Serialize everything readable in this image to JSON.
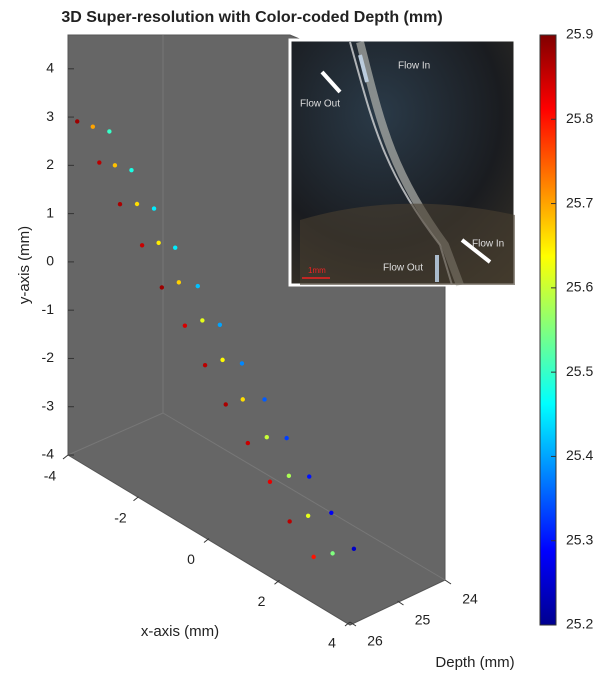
{
  "chart_data": {
    "type": "scatter3d",
    "title": "3D Super-resolution with Color-coded Depth (mm)",
    "xlabel": "x-axis (mm)",
    "ylabel": "y-axis (mm)",
    "zlabel": "Depth (mm)",
    "x": [
      -3.9,
      -3.3,
      -2.7,
      -2.1,
      -1.5,
      -0.9,
      -0.3,
      0.3,
      0.9,
      1.5,
      2.1,
      2.7,
      -3.7,
      -3.1,
      -2.5,
      -1.9,
      -1.3,
      -0.7,
      -0.1,
      0.5,
      1.1,
      1.7,
      2.3,
      2.9,
      -3.5,
      -2.9,
      -2.3,
      -1.7,
      -1.1,
      -0.5,
      0.1,
      0.7,
      1.3,
      1.9,
      2.5,
      3.1
    ],
    "y": [
      2.9,
      2.3,
      1.7,
      1.1,
      0.5,
      -0.05,
      -0.6,
      -1.15,
      -1.7,
      -2.25,
      -2.8,
      -3.3,
      2.8,
      2.25,
      1.7,
      1.15,
      0.6,
      0.05,
      -0.5,
      -1.05,
      -1.6,
      -2.15,
      -2.7,
      -3.25,
      2.7,
      2.15,
      1.6,
      1.05,
      0.5,
      -0.05,
      -0.6,
      -1.1,
      -1.65,
      -2.2,
      -2.7,
      -3.2
    ],
    "z": [
      25.88,
      25.86,
      25.87,
      25.85,
      25.88,
      25.84,
      25.86,
      25.87,
      25.85,
      25.83,
      25.86,
      25.8,
      25.7,
      25.68,
      25.66,
      25.65,
      25.67,
      25.62,
      25.64,
      25.66,
      25.6,
      25.58,
      25.62,
      25.55,
      25.5,
      25.48,
      25.45,
      25.45,
      25.42,
      25.4,
      25.38,
      25.35,
      25.33,
      25.3,
      25.28,
      25.25
    ],
    "xlim": [
      -4,
      4
    ],
    "ylim": [
      -4,
      4.7
    ],
    "zlim": [
      24,
      26
    ],
    "xticks": [
      -4,
      -2,
      0,
      2,
      4
    ],
    "yticks": [
      -4,
      -3,
      -2,
      -1,
      0,
      1,
      2,
      3,
      4
    ],
    "zticks": [
      24,
      25,
      26
    ],
    "colormap": "jet",
    "clim": [
      25.2,
      25.9
    ],
    "colorbar_ticks": [
      25.2,
      25.3,
      25.4,
      25.5,
      25.6,
      25.7,
      25.8,
      25.9
    ]
  },
  "inset": {
    "labels": [
      "Flow In",
      "Flow Out",
      "Flow In",
      "Flow Out",
      "1mm"
    ]
  }
}
